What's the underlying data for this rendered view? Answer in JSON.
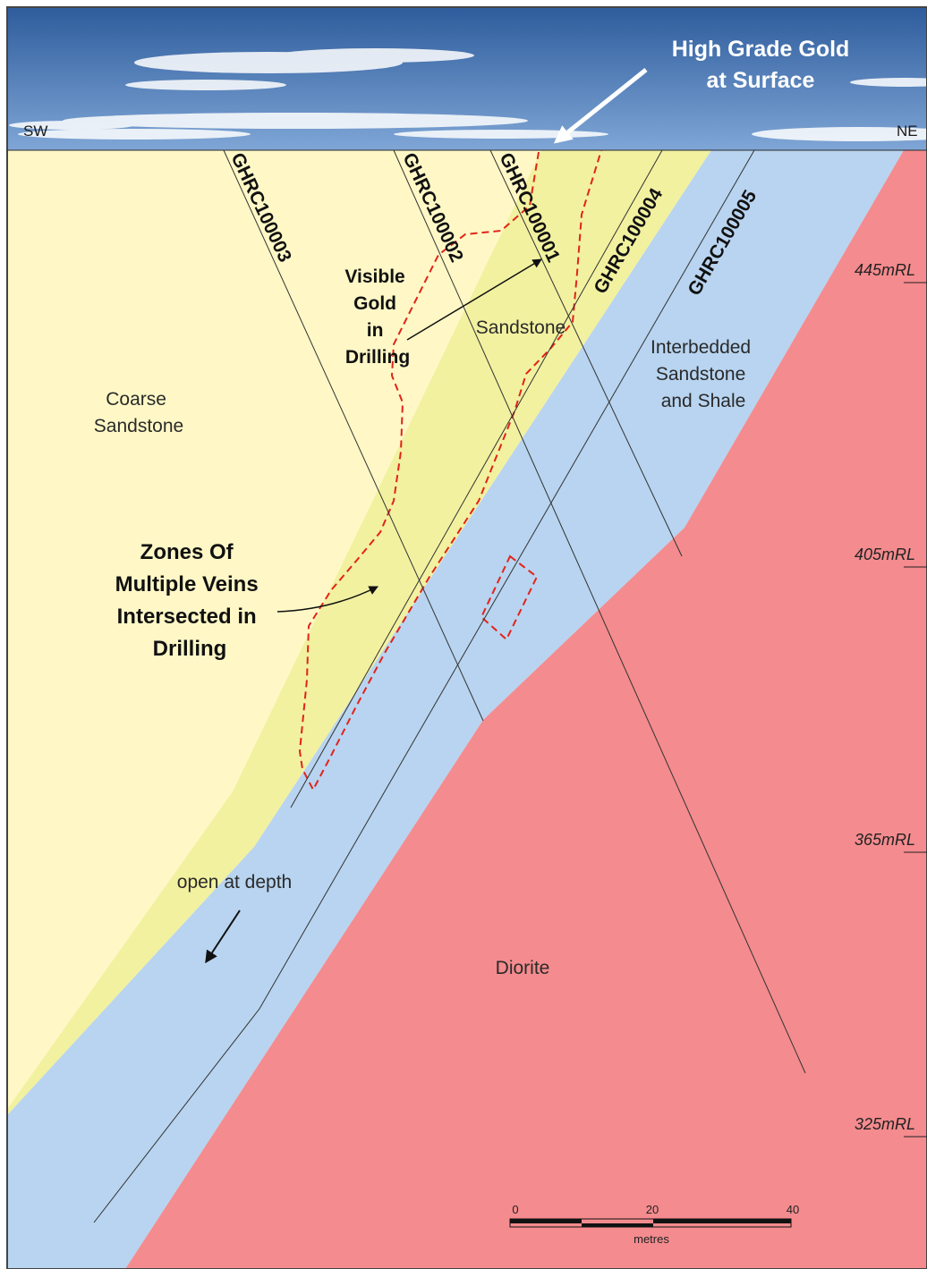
{
  "orientation": {
    "left": "SW",
    "right": "NE"
  },
  "callouts": {
    "surface_gold": [
      "High Grade Gold",
      "at Surface"
    ],
    "visible_gold": [
      "Visible",
      "Gold",
      "in",
      "Drilling"
    ],
    "zones": [
      "Zones Of",
      "Multiple Veins",
      "Intersected in",
      "Drilling"
    ],
    "open_at_depth": "open at depth"
  },
  "units": {
    "coarse_sandstone": [
      "Coarse",
      "Sandstone"
    ],
    "sandstone": "Sandstone",
    "interbedded": [
      "Interbedded",
      "Sandstone",
      "and Shale"
    ],
    "diorite": "Diorite"
  },
  "colors": {
    "coarse_sandstone": "#FFF8C6",
    "sandstone": "#F2F1A0",
    "interbedded": "#B8D4F0",
    "diorite": "#F48B8E",
    "vein_outline": "#E2231A",
    "sky_top": "#2E5C9C",
    "sky_bottom": "#6F99CD"
  },
  "drill_holes": [
    "GHRC100003",
    "GHRC100002",
    "GHRC100001",
    "GHRC100004",
    "GHRC100005"
  ],
  "rl_levels": [
    "445mRL",
    "405mRL",
    "365mRL",
    "325mRL"
  ],
  "scale_bar": {
    "ticks": [
      "0",
      "20",
      "40"
    ],
    "unit": "metres"
  }
}
